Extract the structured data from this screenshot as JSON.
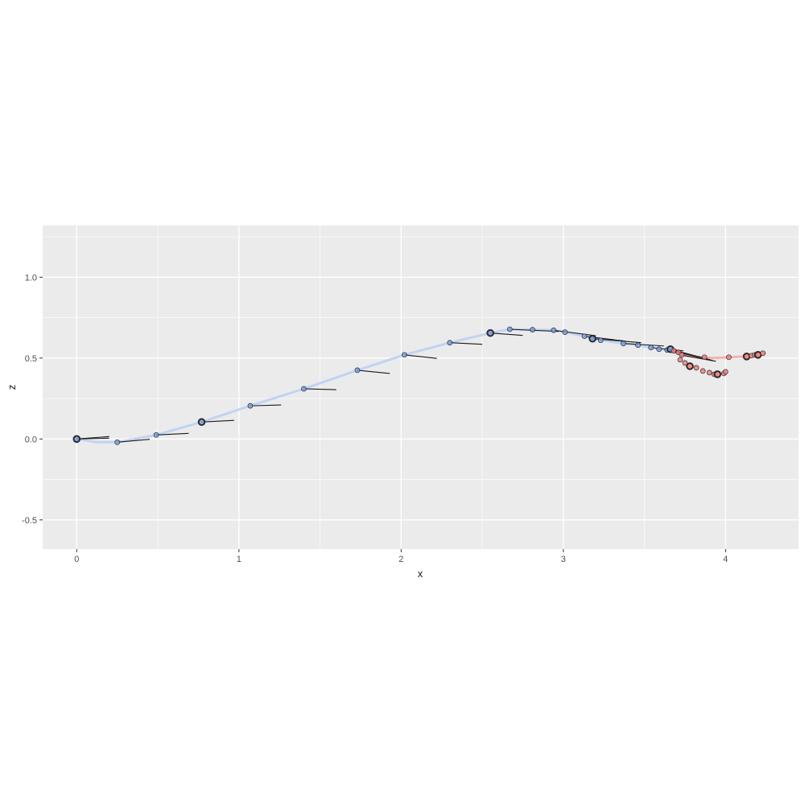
{
  "chart_data": {
    "type": "scatter",
    "title": "",
    "xlabel": "x",
    "ylabel": "z",
    "xlim": [
      -0.21,
      4.45
    ],
    "ylim": [
      -0.68,
      1.32
    ],
    "x_ticks": [
      0,
      1,
      2,
      3,
      4
    ],
    "x_tick_labels": [
      "0",
      "1",
      "2",
      "3",
      "4"
    ],
    "y_ticks": [
      -0.5,
      0.0,
      0.5,
      1.0
    ],
    "y_tick_labels": [
      "-0.5",
      "0.0",
      "0.5",
      "1.0"
    ],
    "grid": true,
    "legend": "none",
    "colors": {
      "panel_background": "#ebebeb",
      "grid_line": "#ffffff",
      "blue_fill": "#7b9fe3",
      "blue_path": "#c2d3f2",
      "red_fill": "#f08080",
      "red_path": "#f4b1b1",
      "point_edge": "#2b2b2b",
      "segment": "#1a1a1a",
      "tick_text": "#4d4d4d"
    },
    "series": [
      {
        "color": "#7b9fe3",
        "path": [
          [
            0.0,
            0.0
          ],
          [
            0.12,
            -0.02
          ],
          [
            0.25,
            -0.02
          ],
          [
            0.49,
            0.025
          ],
          [
            0.77,
            0.105
          ],
          [
            1.07,
            0.205
          ],
          [
            1.4,
            0.31
          ],
          [
            1.73,
            0.425
          ],
          [
            2.02,
            0.52
          ],
          [
            2.3,
            0.595
          ],
          [
            2.55,
            0.655
          ],
          [
            2.67,
            0.678
          ],
          [
            2.81,
            0.675
          ],
          [
            2.94,
            0.672
          ],
          [
            3.01,
            0.66
          ],
          [
            3.13,
            0.635
          ],
          [
            3.18,
            0.62
          ],
          [
            3.23,
            0.61
          ],
          [
            3.37,
            0.59
          ],
          [
            3.46,
            0.58
          ],
          [
            3.54,
            0.565
          ],
          [
            3.59,
            0.555
          ],
          [
            3.64,
            0.55
          ],
          [
            3.66,
            0.555
          ]
        ],
        "points": [
          {
            "x": 0.0,
            "z": 0.0,
            "key": true
          },
          {
            "x": 0.25,
            "z": -0.02
          },
          {
            "x": 0.49,
            "z": 0.025
          },
          {
            "x": 0.77,
            "z": 0.105,
            "key": true
          },
          {
            "x": 1.07,
            "z": 0.205
          },
          {
            "x": 1.4,
            "z": 0.31
          },
          {
            "x": 1.73,
            "z": 0.425
          },
          {
            "x": 2.02,
            "z": 0.52
          },
          {
            "x": 2.3,
            "z": 0.595
          },
          {
            "x": 2.55,
            "z": 0.655,
            "key": true
          },
          {
            "x": 2.67,
            "z": 0.678
          },
          {
            "x": 2.81,
            "z": 0.675
          },
          {
            "x": 2.94,
            "z": 0.672
          },
          {
            "x": 3.01,
            "z": 0.66
          },
          {
            "x": 3.13,
            "z": 0.635
          },
          {
            "x": 3.18,
            "z": 0.62,
            "key": true
          },
          {
            "x": 3.23,
            "z": 0.61
          },
          {
            "x": 3.37,
            "z": 0.59
          },
          {
            "x": 3.46,
            "z": 0.58
          },
          {
            "x": 3.54,
            "z": 0.565
          },
          {
            "x": 3.59,
            "z": 0.555
          },
          {
            "x": 3.64,
            "z": 0.55
          },
          {
            "x": 3.66,
            "z": 0.555,
            "key": true
          }
        ]
      },
      {
        "color": "#f08080",
        "path": [
          [
            3.64,
            0.55
          ],
          [
            3.7,
            0.53
          ],
          [
            3.78,
            0.51
          ],
          [
            3.86,
            0.505
          ],
          [
            3.92,
            0.5
          ],
          [
            4.02,
            0.505
          ],
          [
            4.13,
            0.51
          ],
          [
            4.2,
            0.52
          ],
          [
            4.24,
            0.53
          ]
        ],
        "points": [
          {
            "x": 3.68,
            "z": 0.545
          },
          {
            "x": 3.71,
            "z": 0.535
          },
          {
            "x": 3.73,
            "z": 0.52
          },
          {
            "x": 3.72,
            "z": 0.49
          },
          {
            "x": 3.75,
            "z": 0.47
          },
          {
            "x": 3.78,
            "z": 0.45,
            "key": true
          },
          {
            "x": 3.82,
            "z": 0.44
          },
          {
            "x": 3.86,
            "z": 0.42
          },
          {
            "x": 3.9,
            "z": 0.41
          },
          {
            "x": 3.93,
            "z": 0.4
          },
          {
            "x": 3.95,
            "z": 0.4,
            "key": true
          },
          {
            "x": 3.99,
            "z": 0.405
          },
          {
            "x": 4.0,
            "z": 0.415
          },
          {
            "x": 3.87,
            "z": 0.505
          },
          {
            "x": 4.02,
            "z": 0.505
          },
          {
            "x": 4.13,
            "z": 0.51,
            "key": true
          },
          {
            "x": 4.16,
            "z": 0.515
          },
          {
            "x": 4.18,
            "z": 0.52
          },
          {
            "x": 4.2,
            "z": 0.52,
            "key": true
          },
          {
            "x": 4.23,
            "z": 0.53
          }
        ]
      }
    ],
    "segments": [
      [
        [
          0.0,
          0.0
        ],
        [
          0.2,
          0.015
        ]
      ],
      [
        [
          0.0,
          0.0
        ],
        [
          0.2,
          0.005
        ]
      ],
      [
        [
          0.25,
          -0.02
        ],
        [
          0.45,
          -0.002
        ]
      ],
      [
        [
          0.49,
          0.025
        ],
        [
          0.69,
          0.035
        ]
      ],
      [
        [
          0.77,
          0.105
        ],
        [
          0.97,
          0.115
        ]
      ],
      [
        [
          1.07,
          0.205
        ],
        [
          1.26,
          0.21
        ]
      ],
      [
        [
          1.4,
          0.31
        ],
        [
          1.6,
          0.305
        ]
      ],
      [
        [
          1.73,
          0.425
        ],
        [
          1.93,
          0.405
        ]
      ],
      [
        [
          2.02,
          0.52
        ],
        [
          2.22,
          0.498
        ]
      ],
      [
        [
          2.3,
          0.595
        ],
        [
          2.5,
          0.585
        ]
      ],
      [
        [
          2.55,
          0.655
        ],
        [
          2.75,
          0.64
        ]
      ],
      [
        [
          2.67,
          0.678
        ],
        [
          2.97,
          0.665
        ]
      ],
      [
        [
          2.94,
          0.672
        ],
        [
          3.2,
          0.638
        ]
      ],
      [
        [
          3.13,
          0.635
        ],
        [
          3.38,
          0.605
        ]
      ],
      [
        [
          3.18,
          0.62
        ],
        [
          3.48,
          0.595
        ]
      ],
      [
        [
          3.37,
          0.59
        ],
        [
          3.62,
          0.575
        ]
      ],
      [
        [
          3.54,
          0.565
        ],
        [
          3.74,
          0.545
        ]
      ],
      [
        [
          3.64,
          0.55
        ],
        [
          3.84,
          0.505
        ]
      ],
      [
        [
          3.66,
          0.555
        ],
        [
          3.92,
          0.485
        ]
      ],
      [
        [
          3.7,
          0.54
        ],
        [
          3.9,
          0.49
        ]
      ],
      [
        [
          3.72,
          0.52
        ],
        [
          3.94,
          0.48
        ]
      ]
    ]
  }
}
